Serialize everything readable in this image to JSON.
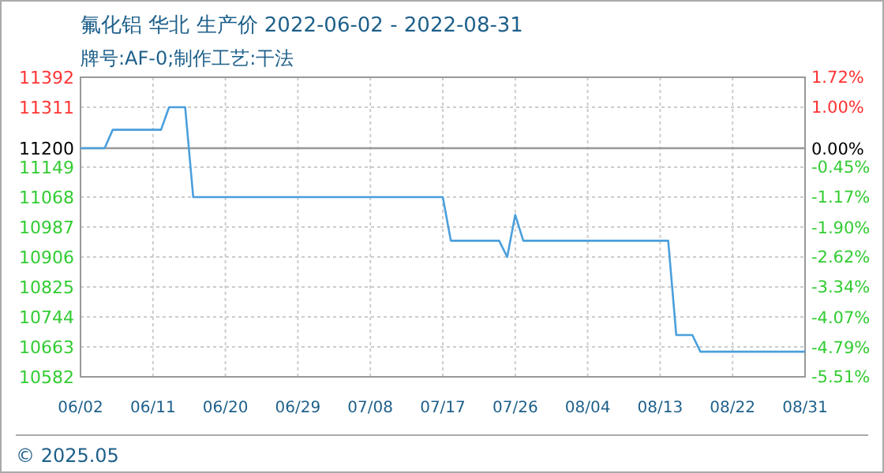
{
  "chart_data": {
    "type": "line",
    "title": "氟化铝 华北 生产价 2022-06-02 - 2022-08-31",
    "subtitle": "牌号:AF-0;制作工艺:干法",
    "x": [
      "2022-06-02",
      "2022-06-05",
      "2022-06-06",
      "2022-06-12",
      "2022-06-13",
      "2022-06-15",
      "2022-06-16",
      "2022-07-17",
      "2022-07-18",
      "2022-07-24",
      "2022-07-25",
      "2022-07-26",
      "2022-07-27",
      "2022-08-14",
      "2022-08-15",
      "2022-08-17",
      "2022-08-18",
      "2022-08-31"
    ],
    "series": [
      {
        "color": "#4a9fdc",
        "values": [
          11200,
          11200,
          11250,
          11250,
          11311,
          11311,
          11068,
          11068,
          10950,
          10950,
          10906,
          11020,
          10950,
          10950,
          10695,
          10695,
          10650,
          10650
        ]
      }
    ],
    "xlim": [
      "2022-06-02",
      "2022-08-31"
    ],
    "xticks": [
      {
        "value": "2022-06-02",
        "label": "06/02"
      },
      {
        "value": "2022-06-11",
        "label": "06/11"
      },
      {
        "value": "2022-06-20",
        "label": "06/20"
      },
      {
        "value": "2022-06-29",
        "label": "06/29"
      },
      {
        "value": "2022-07-08",
        "label": "07/08"
      },
      {
        "value": "2022-07-17",
        "label": "07/17"
      },
      {
        "value": "2022-07-26",
        "label": "07/26"
      },
      {
        "value": "2022-08-04",
        "label": "08/04"
      },
      {
        "value": "2022-08-13",
        "label": "08/13"
      },
      {
        "value": "2022-08-22",
        "label": "08/22"
      },
      {
        "value": "2022-08-31",
        "label": "08/31"
      }
    ],
    "ylim": [
      10582,
      11392
    ],
    "yticks": [
      10582,
      10663,
      10744,
      10825,
      10906,
      10987,
      11068,
      11149,
      11200,
      11311,
      11392
    ],
    "y2lim": [
      -5.51,
      1.72
    ],
    "y2ticks": [
      {
        "value": -5.51,
        "label": "-5.51%"
      },
      {
        "value": -4.79,
        "label": "-4.79%"
      },
      {
        "value": -4.07,
        "label": "-4.07%"
      },
      {
        "value": -3.34,
        "label": "-3.34%"
      },
      {
        "value": -2.62,
        "label": "-2.62%"
      },
      {
        "value": -1.9,
        "label": "-1.90%"
      },
      {
        "value": -1.17,
        "label": "-1.17%"
      },
      {
        "value": -0.45,
        "label": "-0.45%"
      },
      {
        "value": 0,
        "label": "0.00%"
      },
      {
        "value": 1,
        "label": "1.00%"
      },
      {
        "value": 1.72,
        "label": "1.72%"
      }
    ],
    "ref_lines": [
      {
        "axis": "y",
        "value": 11200,
        "color": "#999999"
      }
    ],
    "grid": true,
    "line_style": "solid",
    "marker": "none",
    "annotations": [
      "© 2025.05"
    ]
  }
}
